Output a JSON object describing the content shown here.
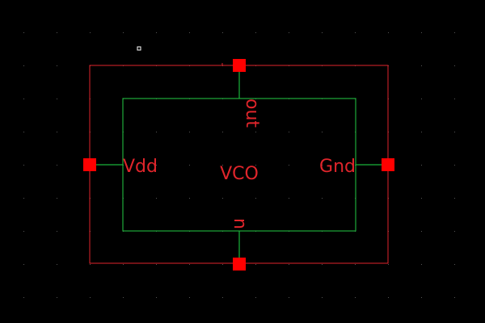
{
  "symbol": {
    "name": "VCO",
    "colors": {
      "background": "#000000",
      "boundary": "#e0252b",
      "body": "#1faa3a",
      "wire": "#19b33b",
      "pin": "#ff0000",
      "text": "#e0252b",
      "grid": "#555555",
      "marker": "#ffffff"
    },
    "pins": {
      "top": "out",
      "left": "Vdd",
      "right": "Gnd",
      "bottom": "n"
    }
  }
}
